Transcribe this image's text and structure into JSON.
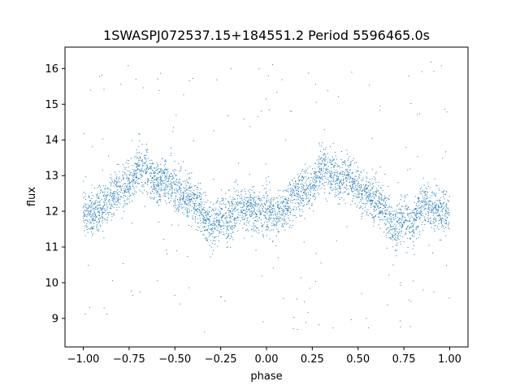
{
  "chart_data": {
    "type": "scatter",
    "title": "1SWASPJ072537.15+184551.2 Period 5596465.0s",
    "xlabel": "phase",
    "ylabel": "flux",
    "xlim": [
      -1.1,
      1.1
    ],
    "ylim": [
      8.2,
      16.6
    ],
    "x_ticks": [
      -1.0,
      -0.75,
      -0.5,
      -0.25,
      0.0,
      0.25,
      0.5,
      0.75,
      1.0
    ],
    "x_tick_labels": [
      "−1.00",
      "−0.75",
      "−0.50",
      "−0.25",
      "0.00",
      "0.25",
      "0.50",
      "0.75",
      "1.00"
    ],
    "y_ticks": [
      9,
      10,
      11,
      12,
      13,
      14,
      15,
      16
    ],
    "y_tick_labels": [
      "9",
      "10",
      "11",
      "12",
      "13",
      "14",
      "15",
      "16"
    ],
    "grid": false,
    "point_color": "#1f77b4",
    "series": [
      {
        "name": "",
        "profile_x": [
          0.0,
          0.05,
          0.1,
          0.15,
          0.2,
          0.25,
          0.3,
          0.35,
          0.4,
          0.45,
          0.5,
          0.55,
          0.6,
          0.65,
          0.7,
          0.75,
          0.8,
          0.85,
          0.9,
          0.95,
          1.0
        ],
        "profile_y": [
          12.0,
          11.9,
          12.1,
          12.4,
          12.6,
          12.7,
          13.3,
          13.1,
          12.8,
          13.0,
          12.6,
          12.5,
          12.3,
          12.0,
          11.5,
          11.9,
          11.7,
          12.2,
          12.1,
          12.0,
          12.0
        ],
        "spread": 0.45,
        "phase_range": [
          -1.0,
          1.0
        ],
        "outlier_y_range": [
          8.6,
          16.2
        ]
      }
    ]
  }
}
